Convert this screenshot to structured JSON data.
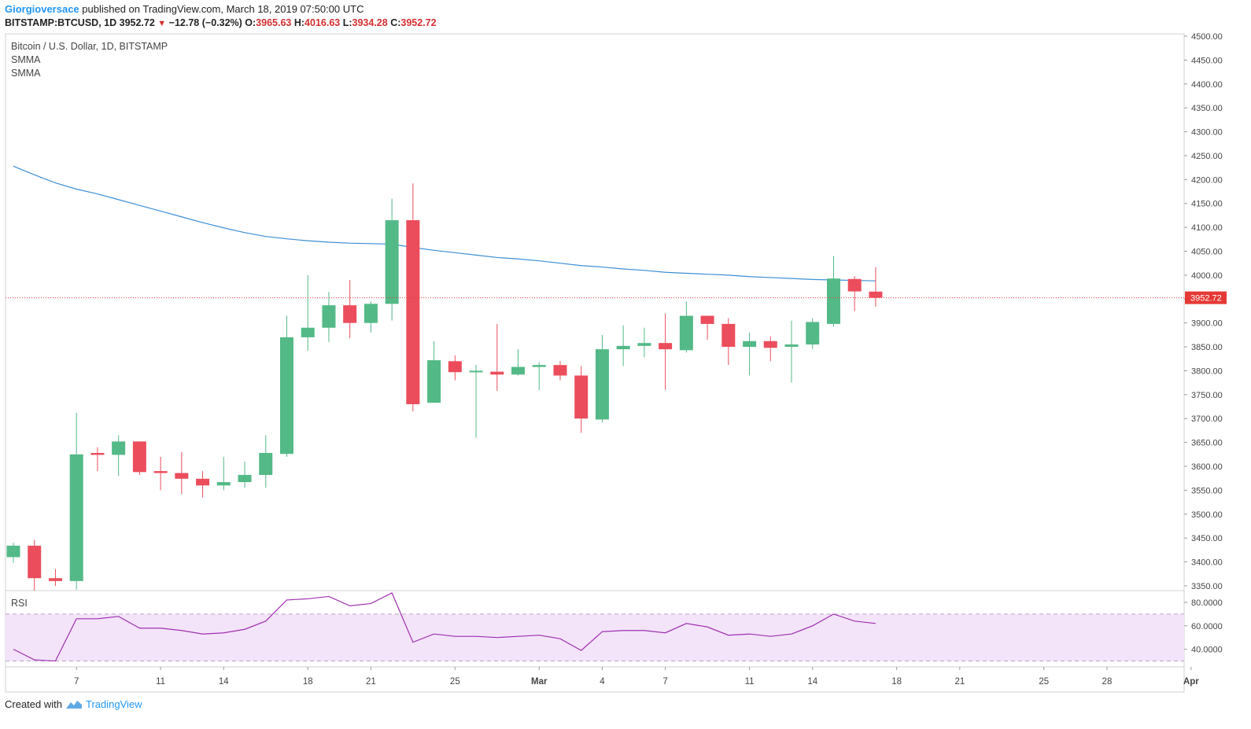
{
  "header": {
    "author": "Giorgioversace",
    "published": " published on TradingView.com, March 18, 2019 07:50:00 UTC",
    "symbol": "BITSTAMP:BTCUSD, 1D",
    "last": "3952.72",
    "change": "−12.78 (−0.32%)",
    "o_label": "O:",
    "o": "3965.63",
    "h_label": "H:",
    "h": "4016.63",
    "l_label": "L:",
    "l": "3934.28",
    "c_label": "C:",
    "c": "3952.72"
  },
  "legend": {
    "title": "Bitcoin / U.S. Dollar, 1D, BITSTAMP",
    "ind1": "SMMA",
    "ind2": "SMMA"
  },
  "rsi_label": "RSI",
  "price_tag": "3952.72",
  "footer": {
    "created": "Created with",
    "brand": "TradingView"
  },
  "colors": {
    "up": "#53b987",
    "down": "#eb4d5c",
    "smma": "#3d8fd6",
    "rsi_line": "#a02fb0",
    "rsi_band": "#f3e4fa",
    "price_line": "#e53935"
  },
  "chart_data": [
    {
      "type": "candlestick",
      "title": "Bitcoin / U.S. Dollar, 1D, BITSTAMP",
      "x_ticks": [
        "7",
        "11",
        "14",
        "18",
        "21",
        "25",
        "Mar",
        "4",
        "7",
        "11",
        "14",
        "18",
        "21",
        "25",
        "28",
        "Apr"
      ],
      "y_ticks": [
        "3350.00",
        "3400.00",
        "3450.00",
        "3500.00",
        "3550.00",
        "3600.00",
        "3650.00",
        "3700.00",
        "3750.00",
        "3800.00",
        "3850.00",
        "3900.00",
        "3950.00",
        "4000.00",
        "4050.00",
        "4100.00",
        "4150.00",
        "4200.00",
        "4250.00",
        "4300.00",
        "4350.00",
        "4400.00",
        "4450.00",
        "4500.00"
      ],
      "ylim": [
        3340,
        4505
      ],
      "x_start": "2019-02-04",
      "candles": [
        {
          "d": "2019-02-04",
          "o": 3410,
          "h": 3440,
          "l": 3398,
          "c": 3434
        },
        {
          "d": "2019-02-05",
          "o": 3434,
          "h": 3446,
          "l": 3340,
          "c": 3366
        },
        {
          "d": "2019-02-06",
          "o": 3366,
          "h": 3385,
          "l": 3350,
          "c": 3360
        },
        {
          "d": "2019-02-07",
          "o": 3360,
          "h": 3712,
          "l": 3342,
          "c": 3625
        },
        {
          "d": "2019-02-08",
          "o": 3628,
          "h": 3640,
          "l": 3590,
          "c": 3624
        },
        {
          "d": "2019-02-09",
          "o": 3624,
          "h": 3665,
          "l": 3580,
          "c": 3652
        },
        {
          "d": "2019-02-10",
          "o": 3652,
          "h": 3652,
          "l": 3582,
          "c": 3588
        },
        {
          "d": "2019-02-11",
          "o": 3590,
          "h": 3620,
          "l": 3550,
          "c": 3586
        },
        {
          "d": "2019-02-12",
          "o": 3586,
          "h": 3630,
          "l": 3542,
          "c": 3574
        },
        {
          "d": "2019-02-13",
          "o": 3574,
          "h": 3590,
          "l": 3535,
          "c": 3560
        },
        {
          "d": "2019-02-14",
          "o": 3560,
          "h": 3620,
          "l": 3550,
          "c": 3567
        },
        {
          "d": "2019-02-15",
          "o": 3567,
          "h": 3610,
          "l": 3555,
          "c": 3582
        },
        {
          "d": "2019-02-16",
          "o": 3582,
          "h": 3665,
          "l": 3555,
          "c": 3628
        },
        {
          "d": "2019-02-17",
          "o": 3626,
          "h": 3915,
          "l": 3620,
          "c": 3870
        },
        {
          "d": "2019-02-18",
          "o": 3870,
          "h": 4000,
          "l": 3842,
          "c": 3890
        },
        {
          "d": "2019-02-19",
          "o": 3890,
          "h": 3965,
          "l": 3860,
          "c": 3937
        },
        {
          "d": "2019-02-20",
          "o": 3937,
          "h": 3990,
          "l": 3868,
          "c": 3900
        },
        {
          "d": "2019-02-21",
          "o": 3900,
          "h": 3945,
          "l": 3880,
          "c": 3940
        },
        {
          "d": "2019-02-22",
          "o": 3940,
          "h": 4160,
          "l": 3905,
          "c": 4115
        },
        {
          "d": "2019-02-23",
          "o": 4115,
          "h": 4192,
          "l": 3715,
          "c": 3730
        },
        {
          "d": "2019-02-24",
          "o": 3733,
          "h": 3862,
          "l": 3733,
          "c": 3822
        },
        {
          "d": "2019-02-25",
          "o": 3820,
          "h": 3832,
          "l": 3780,
          "c": 3797
        },
        {
          "d": "2019-02-26",
          "o": 3797,
          "h": 3812,
          "l": 3660,
          "c": 3800
        },
        {
          "d": "2019-02-27",
          "o": 3798,
          "h": 3898,
          "l": 3758,
          "c": 3792
        },
        {
          "d": "2019-02-28",
          "o": 3792,
          "h": 3845,
          "l": 3790,
          "c": 3808
        },
        {
          "d": "2019-03-01",
          "o": 3808,
          "h": 3818,
          "l": 3760,
          "c": 3812
        },
        {
          "d": "2019-03-02",
          "o": 3812,
          "h": 3820,
          "l": 3780,
          "c": 3790
        },
        {
          "d": "2019-03-03",
          "o": 3790,
          "h": 3810,
          "l": 3670,
          "c": 3700
        },
        {
          "d": "2019-03-04",
          "o": 3698,
          "h": 3875,
          "l": 3692,
          "c": 3845
        },
        {
          "d": "2019-03-05",
          "o": 3845,
          "h": 3895,
          "l": 3810,
          "c": 3852
        },
        {
          "d": "2019-03-06",
          "o": 3852,
          "h": 3890,
          "l": 3828,
          "c": 3858
        },
        {
          "d": "2019-03-07",
          "o": 3858,
          "h": 3920,
          "l": 3760,
          "c": 3845
        },
        {
          "d": "2019-03-08",
          "o": 3843,
          "h": 3945,
          "l": 3838,
          "c": 3915
        },
        {
          "d": "2019-03-09",
          "o": 3915,
          "h": 3915,
          "l": 3865,
          "c": 3898
        },
        {
          "d": "2019-03-10",
          "o": 3898,
          "h": 3910,
          "l": 3812,
          "c": 3850
        },
        {
          "d": "2019-03-11",
          "o": 3850,
          "h": 3880,
          "l": 3790,
          "c": 3862
        },
        {
          "d": "2019-03-12",
          "o": 3862,
          "h": 3872,
          "l": 3820,
          "c": 3848
        },
        {
          "d": "2019-03-13",
          "o": 3850,
          "h": 3905,
          "l": 3775,
          "c": 3855
        },
        {
          "d": "2019-03-14",
          "o": 3855,
          "h": 3910,
          "l": 3845,
          "c": 3902
        },
        {
          "d": "2019-03-15",
          "o": 3898,
          "h": 4040,
          "l": 3892,
          "c": 3993
        },
        {
          "d": "2019-03-16",
          "o": 3992,
          "h": 3998,
          "l": 3925,
          "c": 3966
        },
        {
          "d": "2019-03-17",
          "o": 3965.63,
          "h": 4016.63,
          "l": 3934.28,
          "c": 3952.72
        }
      ],
      "smma": [
        4228,
        4210,
        4193,
        4180,
        4170,
        4158,
        4146,
        4134,
        4122,
        4110,
        4099,
        4089,
        4081,
        4076,
        4072,
        4069,
        4067,
        4066,
        4065,
        4058,
        4052,
        4047,
        4042,
        4037,
        4034,
        4030,
        4025,
        4020,
        4017,
        4013,
        4010,
        4006,
        4004,
        4002,
        4000,
        3997,
        3995,
        3993,
        3991,
        3990,
        3989,
        3988
      ],
      "last_price": 3952.72
    },
    {
      "type": "line",
      "title": "RSI",
      "y_ticks": [
        "40.0000",
        "60.0000",
        "80.0000"
      ],
      "ylim": [
        25,
        90
      ],
      "band": [
        30,
        70
      ],
      "values": [
        40,
        31,
        30,
        66,
        66,
        68,
        58,
        58,
        56,
        53,
        54,
        57,
        64,
        82,
        83,
        85,
        77,
        79,
        88,
        46,
        53,
        51,
        51,
        50,
        51,
        52,
        49,
        39,
        55,
        56,
        56,
        54,
        62,
        59,
        52,
        53,
        51,
        53,
        60,
        70,
        64,
        62
      ]
    }
  ]
}
